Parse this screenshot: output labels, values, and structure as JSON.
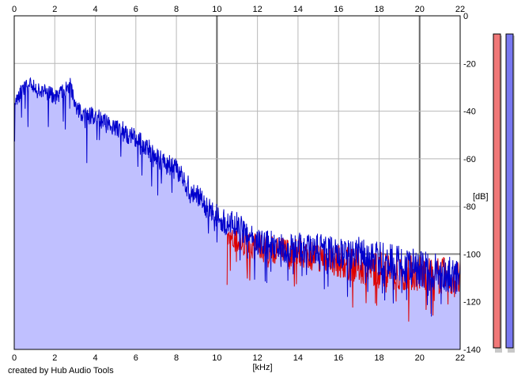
{
  "credit": "created by Hub Audio Tools",
  "chart_data": {
    "type": "area",
    "xlabel": "[kHz]",
    "ylabel": "[dB]",
    "xlim": [
      0,
      22
    ],
    "ylim": [
      -140,
      0
    ],
    "x_ticks": [
      0,
      2,
      4,
      6,
      8,
      10,
      12,
      14,
      16,
      18,
      20,
      22
    ],
    "y_ticks": [
      0,
      -20,
      -40,
      -60,
      -80,
      -100,
      -120,
      -140
    ],
    "x_tick_labels": [
      "0",
      "2",
      "4",
      "6",
      "8",
      "10",
      "12",
      "14",
      "16",
      "18",
      "20",
      "22"
    ],
    "y_tick_labels": [
      "0",
      "-20",
      "-40",
      "-60",
      "-80",
      "-100",
      "-120",
      "-140"
    ],
    "grid": true,
    "series": [
      {
        "color": "#0000cc",
        "fill": "#c0c0ff",
        "x": [
          0,
          0.25,
          0.5,
          0.75,
          1,
          1.25,
          1.5,
          1.75,
          2,
          2.25,
          2.5,
          2.75,
          3,
          3.25,
          3.5,
          3.75,
          4,
          4.5,
          5,
          5.5,
          6,
          6.5,
          7,
          7.5,
          8,
          8.5,
          9,
          9.5,
          10,
          10.5,
          11,
          11.5,
          12,
          12.5,
          13,
          13.5,
          14,
          14.5,
          15,
          15.5,
          16,
          16.5,
          17,
          17.5,
          18,
          18.5,
          19,
          19.5,
          20,
          20.5,
          21,
          21.5,
          22
        ],
        "y": [
          -37,
          -33,
          -30,
          -29,
          -30,
          -32,
          -31,
          -33,
          -34,
          -33,
          -31,
          -29,
          -38,
          -40,
          -42,
          -42,
          -42,
          -45,
          -47,
          -49,
          -52,
          -55,
          -59,
          -62,
          -65,
          -71,
          -75,
          -80,
          -84,
          -87,
          -88,
          -92,
          -95,
          -96,
          -97,
          -98,
          -97,
          -97,
          -98,
          -99,
          -100,
          -100,
          -100,
          -101,
          -102,
          -103,
          -104,
          -105,
          -106,
          -107,
          -108,
          -109,
          -110
        ]
      },
      {
        "color": "#dd0000",
        "x": [
          10.5,
          11,
          11.5,
          12,
          12.5,
          13,
          13.5,
          14,
          14.5,
          15,
          15.5,
          16,
          16.5,
          17,
          17.5,
          18,
          18.5,
          19,
          19.5,
          20,
          20.5,
          21,
          21.5,
          22
        ],
        "y": [
          -94,
          -95,
          -96,
          -97,
          -98,
          -99,
          -99,
          -99,
          -100,
          -101,
          -102,
          -103,
          -104,
          -105,
          -106,
          -106,
          -107,
          -107,
          -108,
          -108,
          -109,
          -109,
          -110,
          -111
        ]
      }
    ],
    "level_meters": [
      {
        "channel": "left",
        "color": "#f07878",
        "level": 0.0
      },
      {
        "channel": "right",
        "color": "#7878f0",
        "level": 0.0
      }
    ]
  }
}
